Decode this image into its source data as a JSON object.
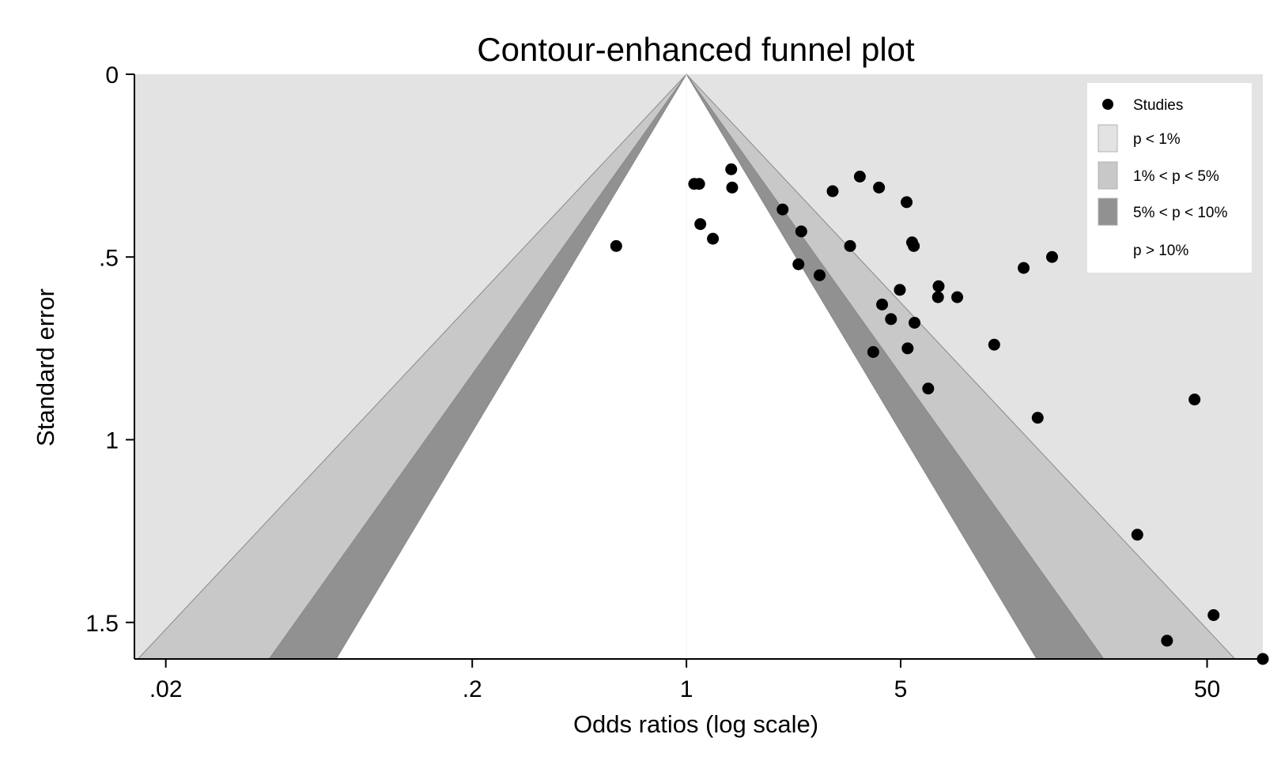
{
  "chart_data": {
    "type": "scatter",
    "title": "Contour-enhanced funnel plot",
    "xlabel": "Odds ratios (log scale)",
    "ylabel": "Standard error",
    "x_scale": "log",
    "y_reversed": true,
    "xlim": [
      0.0158,
      76
    ],
    "ylim": [
      0,
      1.6
    ],
    "x_ticks": [
      {
        "value": 0.02,
        "label": ".02"
      },
      {
        "value": 0.2,
        "label": ".2"
      },
      {
        "value": 1,
        "label": "1"
      },
      {
        "value": 5,
        "label": "5"
      },
      {
        "value": 50,
        "label": "50"
      }
    ],
    "y_ticks": [
      {
        "value": 0,
        "label": "0"
      },
      {
        "value": 0.5,
        "label": ".5"
      },
      {
        "value": 1,
        "label": "1"
      },
      {
        "value": 1.5,
        "label": "1.5"
      }
    ],
    "contours": [
      {
        "name": "p < 1%",
        "z": 2.576,
        "color": "#e3e3e3"
      },
      {
        "name": "1% < p < 5%",
        "z": 1.96,
        "color": "#c8c8c8"
      },
      {
        "name": "5% < p < 10%",
        "z": 1.645,
        "color": "#919191"
      },
      {
        "name": "p > 10%",
        "color": "#ffffff"
      }
    ],
    "legend": {
      "position": "top-right",
      "entries": [
        "Studies",
        "p < 1%",
        "1% < p < 5%",
        "5% < p < 10%",
        "p > 10%"
      ]
    },
    "series": [
      {
        "name": "Studies",
        "color": "#000000",
        "points": [
          {
            "x": 0.59,
            "y": 0.47
          },
          {
            "x": 1.06,
            "y": 0.3
          },
          {
            "x": 1.1,
            "y": 0.3
          },
          {
            "x": 1.11,
            "y": 0.41
          },
          {
            "x": 1.22,
            "y": 0.45
          },
          {
            "x": 1.4,
            "y": 0.26
          },
          {
            "x": 1.41,
            "y": 0.31
          },
          {
            "x": 2.06,
            "y": 0.37
          },
          {
            "x": 2.32,
            "y": 0.52
          },
          {
            "x": 2.37,
            "y": 0.43
          },
          {
            "x": 2.72,
            "y": 0.55
          },
          {
            "x": 3.0,
            "y": 0.32
          },
          {
            "x": 3.42,
            "y": 0.47
          },
          {
            "x": 3.68,
            "y": 0.28
          },
          {
            "x": 4.07,
            "y": 0.76
          },
          {
            "x": 4.25,
            "y": 0.31
          },
          {
            "x": 4.35,
            "y": 0.63
          },
          {
            "x": 4.65,
            "y": 0.67
          },
          {
            "x": 4.97,
            "y": 0.59
          },
          {
            "x": 5.23,
            "y": 0.35
          },
          {
            "x": 5.27,
            "y": 0.75
          },
          {
            "x": 5.45,
            "y": 0.46
          },
          {
            "x": 5.52,
            "y": 0.47
          },
          {
            "x": 5.55,
            "y": 0.68
          },
          {
            "x": 6.15,
            "y": 0.86
          },
          {
            "x": 6.65,
            "y": 0.58
          },
          {
            "x": 6.62,
            "y": 0.61
          },
          {
            "x": 7.65,
            "y": 0.61
          },
          {
            "x": 10.1,
            "y": 0.74
          },
          {
            "x": 12.6,
            "y": 0.53
          },
          {
            "x": 14.0,
            "y": 0.94
          },
          {
            "x": 15.6,
            "y": 0.5
          },
          {
            "x": 29.6,
            "y": 1.26
          },
          {
            "x": 37.0,
            "y": 1.55
          },
          {
            "x": 45.5,
            "y": 0.89
          },
          {
            "x": 52.5,
            "y": 1.48
          },
          {
            "x": 76.0,
            "y": 1.6
          }
        ]
      }
    ]
  }
}
